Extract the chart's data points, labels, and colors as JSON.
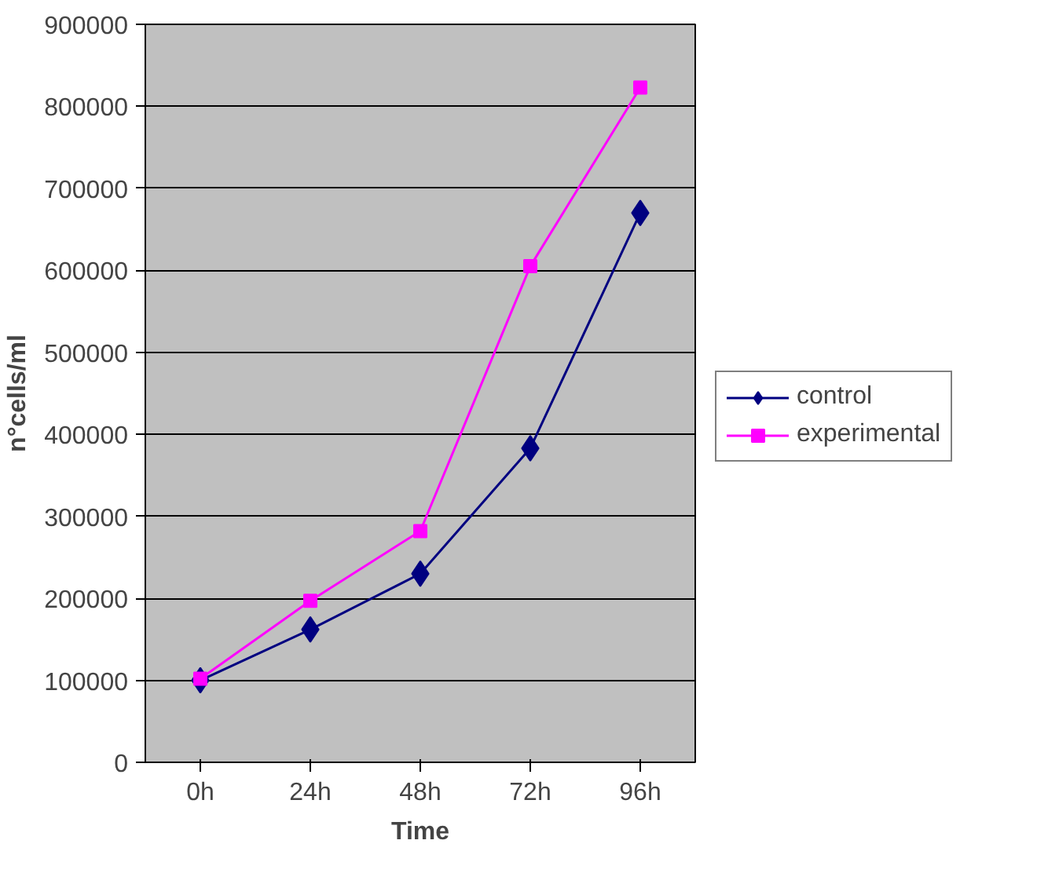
{
  "chart_data": {
    "type": "line",
    "xlabel": "Time",
    "ylabel": "n°cells/ml",
    "categories": [
      "0h",
      "24h",
      "48h",
      "72h",
      "96h"
    ],
    "series": [
      {
        "name": "control",
        "color": "#000080",
        "marker": "diamond",
        "values": [
          100000,
          162000,
          230000,
          383000,
          670000
        ]
      },
      {
        "name": "experimental",
        "color": "#ff00ff",
        "marker": "square",
        "values": [
          102000,
          197000,
          282000,
          605000,
          823000
        ]
      }
    ],
    "ylim": [
      0,
      900000
    ],
    "yticks": [
      0,
      100000,
      200000,
      300000,
      400000,
      500000,
      600000,
      700000,
      800000,
      900000
    ],
    "grid": "y",
    "legend": "right"
  }
}
